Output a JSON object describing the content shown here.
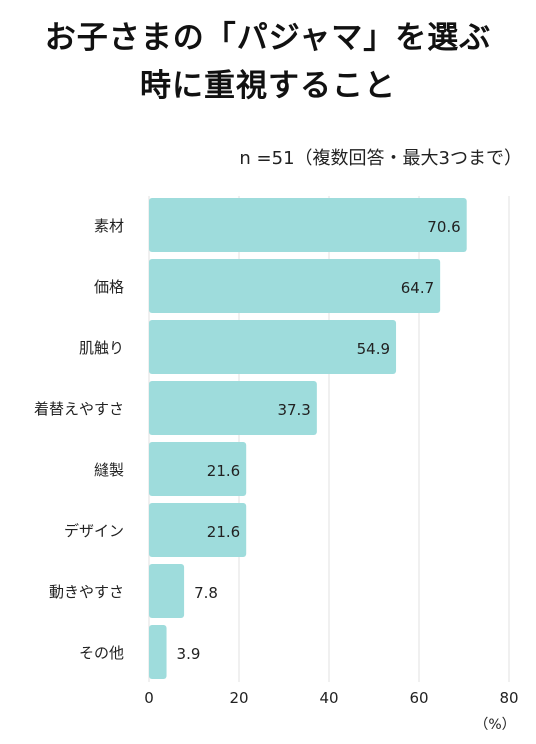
{
  "title_line1": "お子さまの「パジャマ」を選ぶ",
  "title_line2": "時に重視すること",
  "subtitle": "n =51（複数回答・最大3つまで）",
  "colors": {
    "bar": "#9edcdc",
    "grid": "#e0e0e0",
    "text": "#222222"
  },
  "chart_data": {
    "type": "bar",
    "orientation": "horizontal",
    "categories": [
      "素材",
      "価格",
      "肌触り",
      "着替えやすさ",
      "縫製",
      "デザイン",
      "動きやすさ",
      "その他"
    ],
    "values": [
      70.6,
      64.7,
      54.9,
      37.3,
      21.6,
      21.6,
      7.8,
      3.9
    ],
    "xlim": [
      0,
      80
    ],
    "xticks": [
      0,
      20,
      40,
      60,
      80
    ],
    "unit_label": "（%）",
    "grid": true
  }
}
